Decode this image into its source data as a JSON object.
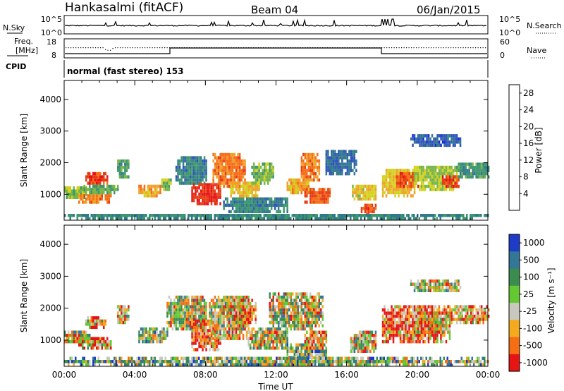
{
  "header": {
    "station": "Hankasalmi (fitACF)",
    "beam": "Beam 04",
    "date": "06/Jan/2015"
  },
  "noise_panel": {
    "left_label": "N.Sky",
    "left_ticks": [
      "10^5",
      "10^0"
    ],
    "right_ticks": [
      "10^5",
      "10^0"
    ],
    "right_label": "N.Search"
  },
  "freq_panel": {
    "left_label_line1": "Freq.",
    "left_label_line2": "[MHz]",
    "left_ticks": [
      "18",
      "8"
    ],
    "right_ticks": [
      "60",
      "0"
    ],
    "right_label": "Nave"
  },
  "cpid_panel": {
    "label": "CPID",
    "mode": "normal (fast stereo) 153"
  },
  "chart_data": [
    {
      "type": "heatmap",
      "name": "power",
      "xlabel": "Time UT",
      "ylabel": "Slant Range [km]",
      "xlim": [
        0,
        24
      ],
      "ylim": [
        180,
        4600
      ],
      "x_ticks": [
        "00:00",
        "04:00",
        "08:00",
        "12:00",
        "16:00",
        "20:00",
        "00:00"
      ],
      "y_ticks": [
        1000,
        2000,
        3000,
        4000
      ],
      "colorbar": {
        "label": "Power [dB]",
        "ticks": [
          4,
          8,
          12,
          16,
          20,
          24,
          28
        ],
        "range": [
          0,
          30
        ],
        "colors": [
          "#1428dc",
          "#2e55b8",
          "#32788c",
          "#3c966e",
          "#78b446",
          "#d2d21e",
          "#f0a028",
          "#f56e19",
          "#e63c14",
          "#e61414"
        ]
      },
      "regions": [
        {
          "t": [
            0.0,
            1.2
          ],
          "r": [
            850,
            1250
          ],
          "v": 14
        },
        {
          "t": [
            1.2,
            2.4
          ],
          "r": [
            1300,
            1650
          ],
          "v": 26
        },
        {
          "t": [
            0.8,
            2.6
          ],
          "r": [
            700,
            1000
          ],
          "v": 22
        },
        {
          "t": [
            1.0,
            3.0
          ],
          "r": [
            1000,
            1300
          ],
          "v": 12
        },
        {
          "t": [
            3.0,
            3.6
          ],
          "r": [
            1500,
            2050
          ],
          "v": 11
        },
        {
          "t": [
            4.2,
            5.4
          ],
          "r": [
            900,
            1300
          ],
          "v": 20
        },
        {
          "t": [
            5.5,
            6.0
          ],
          "r": [
            1100,
            1500
          ],
          "v": 14
        },
        {
          "t": [
            6.3,
            8.0
          ],
          "r": [
            1300,
            2200
          ],
          "v": 8
        },
        {
          "t": [
            7.2,
            8.8
          ],
          "r": [
            650,
            1300
          ],
          "v": 27
        },
        {
          "t": [
            8.4,
            10.2
          ],
          "r": [
            1200,
            2300
          ],
          "v": 22
        },
        {
          "t": [
            9.4,
            11.0
          ],
          "r": [
            900,
            1400
          ],
          "v": 18
        },
        {
          "t": [
            9.0,
            12.6
          ],
          "r": [
            400,
            900
          ],
          "v": 8
        },
        {
          "t": [
            10.6,
            11.8
          ],
          "r": [
            1300,
            2000
          ],
          "v": 13
        },
        {
          "t": [
            12.6,
            13.8
          ],
          "r": [
            1000,
            1500
          ],
          "v": 19
        },
        {
          "t": [
            13.4,
            14.4
          ],
          "r": [
            1400,
            2300
          ],
          "v": 22
        },
        {
          "t": [
            13.6,
            15.0
          ],
          "r": [
            700,
            1200
          ],
          "v": 24
        },
        {
          "t": [
            14.8,
            16.5
          ],
          "r": [
            1600,
            2400
          ],
          "v": 6
        },
        {
          "t": [
            16.3,
            17.6
          ],
          "r": [
            800,
            1300
          ],
          "v": 17
        },
        {
          "t": [
            16.8,
            17.6
          ],
          "r": [
            300,
            700
          ],
          "v": 25
        },
        {
          "t": [
            18.0,
            19.8
          ],
          "r": [
            900,
            1800
          ],
          "v": 18
        },
        {
          "t": [
            18.8,
            20.0
          ],
          "r": [
            1200,
            1700
          ],
          "v": 25
        },
        {
          "t": [
            19.8,
            22.2
          ],
          "r": [
            1100,
            1900
          ],
          "v": 15
        },
        {
          "t": [
            21.4,
            22.3
          ],
          "r": [
            1200,
            1600
          ],
          "v": 26
        },
        {
          "t": [
            22.2,
            24.0
          ],
          "r": [
            1500,
            2000
          ],
          "v": 10
        },
        {
          "t": [
            19.6,
            22.4
          ],
          "r": [
            2500,
            2850
          ],
          "v": 5
        },
        {
          "t": [
            0.0,
            24.0
          ],
          "r": [
            180,
            380
          ],
          "v": 9
        }
      ]
    },
    {
      "type": "heatmap",
      "name": "velocity",
      "xlabel": "Time UT",
      "ylabel": "Slant Range [km]",
      "xlim": [
        0,
        24
      ],
      "ylim": [
        180,
        4600
      ],
      "x_ticks": [
        "00:00",
        "04:00",
        "08:00",
        "12:00",
        "16:00",
        "20:00",
        "00:00"
      ],
      "y_ticks": [
        1000,
        2000,
        3000,
        4000
      ],
      "colorbar": {
        "label": "Velocity [m s⁻¹]",
        "ticks": [
          "1000",
          "500",
          "100",
          "25",
          "-25",
          "-100",
          "-500",
          "-1000"
        ],
        "colors": [
          "#1e3cc8",
          "#327896",
          "#3c8c50",
          "#64c832",
          "#c8c8be",
          "#f5aa1e",
          "#f56e14",
          "#e61414"
        ]
      },
      "regions": [
        {
          "t": [
            0.0,
            1.4
          ],
          "r": [
            900,
            1250
          ],
          "v": 4
        },
        {
          "t": [
            0.8,
            2.6
          ],
          "r": [
            700,
            1000
          ],
          "v": 5
        },
        {
          "t": [
            1.2,
            2.3
          ],
          "r": [
            1350,
            1700
          ],
          "v": 5
        },
        {
          "t": [
            3.0,
            3.6
          ],
          "r": [
            1500,
            2050
          ],
          "v": 4
        },
        {
          "t": [
            4.2,
            5.8
          ],
          "r": [
            900,
            1300
          ],
          "v": 3
        },
        {
          "t": [
            5.8,
            8.0
          ],
          "r": [
            1300,
            2300
          ],
          "v": 4
        },
        {
          "t": [
            7.2,
            8.8
          ],
          "r": [
            650,
            1600
          ],
          "v": 6
        },
        {
          "t": [
            8.2,
            10.4
          ],
          "r": [
            1000,
            2300
          ],
          "v": 4
        },
        {
          "t": [
            9.2,
            10.8
          ],
          "r": [
            1500,
            2200
          ],
          "v": 5
        },
        {
          "t": [
            10.4,
            12.6
          ],
          "r": [
            700,
            1300
          ],
          "v": 4
        },
        {
          "t": [
            11.6,
            14.6
          ],
          "r": [
            1300,
            2400
          ],
          "v": 4
        },
        {
          "t": [
            12.6,
            14.8
          ],
          "r": [
            400,
            800
          ],
          "v": 3
        },
        {
          "t": [
            13.6,
            14.8
          ],
          "r": [
            700,
            1200
          ],
          "v": 5
        },
        {
          "t": [
            16.2,
            17.6
          ],
          "r": [
            600,
            1200
          ],
          "v": 4
        },
        {
          "t": [
            18.0,
            21.8
          ],
          "r": [
            900,
            2000
          ],
          "v": 6
        },
        {
          "t": [
            19.8,
            21.6
          ],
          "r": [
            1200,
            1800
          ],
          "v": 5
        },
        {
          "t": [
            21.6,
            24.0
          ],
          "r": [
            1500,
            2000
          ],
          "v": 5
        },
        {
          "t": [
            19.6,
            22.4
          ],
          "r": [
            2500,
            2800
          ],
          "v": 4
        },
        {
          "t": [
            0.0,
            24.0
          ],
          "r": [
            180,
            380
          ],
          "v": 3
        }
      ]
    }
  ]
}
